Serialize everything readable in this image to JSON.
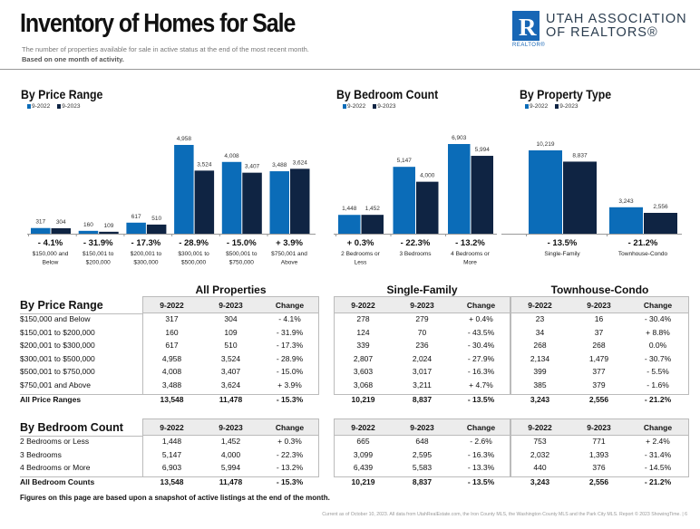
{
  "header": {
    "title": "Inventory of Homes for Sale",
    "subtitle": "The number of properties available for sale in active status at the end of the most recent month.",
    "subtitle2": "Based on one month of activity.",
    "logo_line1": "UTAH ASSOCIATION",
    "logo_line2": "OF REALTORS®",
    "logo_mark": "R",
    "logo_small": "REALTOR®"
  },
  "colors": {
    "series_2022": "#0b6cb8",
    "series_2023": "#0f2443"
  },
  "chart_data": [
    {
      "type": "bar",
      "title": "By Price Range",
      "legend": [
        "9-2022",
        "9-2023"
      ],
      "legend_position": "top-left",
      "categories": [
        "$150,000 and Below",
        "$150,001 to $200,000",
        "$200,001 to $300,000",
        "$300,001 to $500,000",
        "$500,001 to $750,000",
        "$750,001 and Above"
      ],
      "series": [
        {
          "name": "9-2022",
          "values": [
            317,
            160,
            617,
            4958,
            4008,
            3488
          ]
        },
        {
          "name": "9-2023",
          "values": [
            304,
            109,
            510,
            3524,
            3407,
            3624
          ]
        }
      ],
      "changes": [
        "- 4.1%",
        "- 31.9%",
        "- 17.3%",
        "- 28.9%",
        "- 15.0%",
        "+ 3.9%"
      ],
      "labels": [
        [
          "317",
          "304"
        ],
        [
          "160",
          "109"
        ],
        [
          "617",
          "510"
        ],
        [
          "4,958",
          "3,524"
        ],
        [
          "4,008",
          "3,407"
        ],
        [
          "3,488",
          "3,624"
        ]
      ],
      "cat_lines": [
        [
          "$150,000 and",
          "Below"
        ],
        [
          "$150,001 to",
          "$200,000"
        ],
        [
          "$200,001 to",
          "$300,000"
        ],
        [
          "$300,001 to",
          "$500,000"
        ],
        [
          "$500,001 to",
          "$750,000"
        ],
        [
          "$750,001 and",
          "Above"
        ]
      ]
    },
    {
      "type": "bar",
      "title": "By Bedroom Count",
      "legend": [
        "9-2022",
        "9-2023"
      ],
      "legend_position": "top-left",
      "categories": [
        "2 Bedrooms or Less",
        "3 Bedrooms",
        "4 Bedrooms or More"
      ],
      "series": [
        {
          "name": "9-2022",
          "values": [
            1448,
            5147,
            6903
          ]
        },
        {
          "name": "9-2023",
          "values": [
            1452,
            4000,
            5994
          ]
        }
      ],
      "changes": [
        "+ 0.3%",
        "- 22.3%",
        "- 13.2%"
      ],
      "labels": [
        [
          "1,448",
          "1,452"
        ],
        [
          "5,147",
          "4,000"
        ],
        [
          "6,903",
          "5,994"
        ]
      ],
      "cat_lines": [
        [
          "2 Bedrooms or",
          "Less"
        ],
        [
          "3 Bedrooms"
        ],
        [
          "4 Bedrooms or",
          "More"
        ]
      ]
    },
    {
      "type": "bar",
      "title": "By Property Type",
      "legend": [
        "9-2022",
        "9-2023"
      ],
      "legend_position": "top-left",
      "categories": [
        "Single-Family",
        "Townhouse-Condo"
      ],
      "series": [
        {
          "name": "9-2022",
          "values": [
            10219,
            3243
          ]
        },
        {
          "name": "9-2023",
          "values": [
            8837,
            2556
          ]
        }
      ],
      "changes": [
        "- 13.5%",
        "- 21.2%"
      ],
      "labels": [
        [
          "10,219",
          "8,837"
        ],
        [
          "3,243",
          "2,556"
        ]
      ],
      "cat_lines": [
        [
          "Single-Family"
        ],
        [
          "Townhouse-Condo"
        ]
      ]
    }
  ],
  "tables": {
    "groups": [
      "All Properties",
      "Single-Family",
      "Townhouse-Condo"
    ],
    "columns": [
      "9-2022",
      "9-2023",
      "Change"
    ],
    "price": {
      "title": "By Price Range",
      "rows": [
        [
          "$150,000 and Below",
          "317",
          "304",
          "- 4.1%",
          "278",
          "279",
          "+ 0.4%",
          "23",
          "16",
          "- 30.4%"
        ],
        [
          "$150,001 to $200,000",
          "160",
          "109",
          "- 31.9%",
          "124",
          "70",
          "- 43.5%",
          "34",
          "37",
          "+ 8.8%"
        ],
        [
          "$200,001 to $300,000",
          "617",
          "510",
          "- 17.3%",
          "339",
          "236",
          "- 30.4%",
          "268",
          "268",
          "0.0%"
        ],
        [
          "$300,001 to $500,000",
          "4,958",
          "3,524",
          "- 28.9%",
          "2,807",
          "2,024",
          "- 27.9%",
          "2,134",
          "1,479",
          "- 30.7%"
        ],
        [
          "$500,001 to $750,000",
          "4,008",
          "3,407",
          "- 15.0%",
          "3,603",
          "3,017",
          "- 16.3%",
          "399",
          "377",
          "- 5.5%"
        ],
        [
          "$750,001 and Above",
          "3,488",
          "3,624",
          "+ 3.9%",
          "3,068",
          "3,211",
          "+ 4.7%",
          "385",
          "379",
          "- 1.6%"
        ]
      ],
      "total": [
        "All Price Ranges",
        "13,548",
        "11,478",
        "- 15.3%",
        "10,219",
        "8,837",
        "- 13.5%",
        "3,243",
        "2,556",
        "- 21.2%"
      ]
    },
    "bedroom": {
      "title": "By Bedroom Count",
      "rows": [
        [
          "2 Bedrooms or Less",
          "1,448",
          "1,452",
          "+ 0.3%",
          "665",
          "648",
          "- 2.6%",
          "753",
          "771",
          "+ 2.4%"
        ],
        [
          "3 Bedrooms",
          "5,147",
          "4,000",
          "- 22.3%",
          "3,099",
          "2,595",
          "- 16.3%",
          "2,032",
          "1,393",
          "- 31.4%"
        ],
        [
          "4 Bedrooms or More",
          "6,903",
          "5,994",
          "- 13.2%",
          "6,439",
          "5,583",
          "- 13.3%",
          "440",
          "376",
          "- 14.5%"
        ]
      ],
      "total": [
        "All Bedroom Counts",
        "13,548",
        "11,478",
        "- 15.3%",
        "10,219",
        "8,837",
        "- 13.5%",
        "3,243",
        "2,556",
        "- 21.2%"
      ]
    }
  },
  "footer": {
    "note": "Figures on this page are based upon a snapshot of active listings at the end of the month.",
    "source": "Current as of October 10, 2023. All data from UtahRealEstate.com, the Iron County MLS, the Washington County MLS and the Park City MLS. Report © 2023 ShowingTime.  |  6"
  }
}
